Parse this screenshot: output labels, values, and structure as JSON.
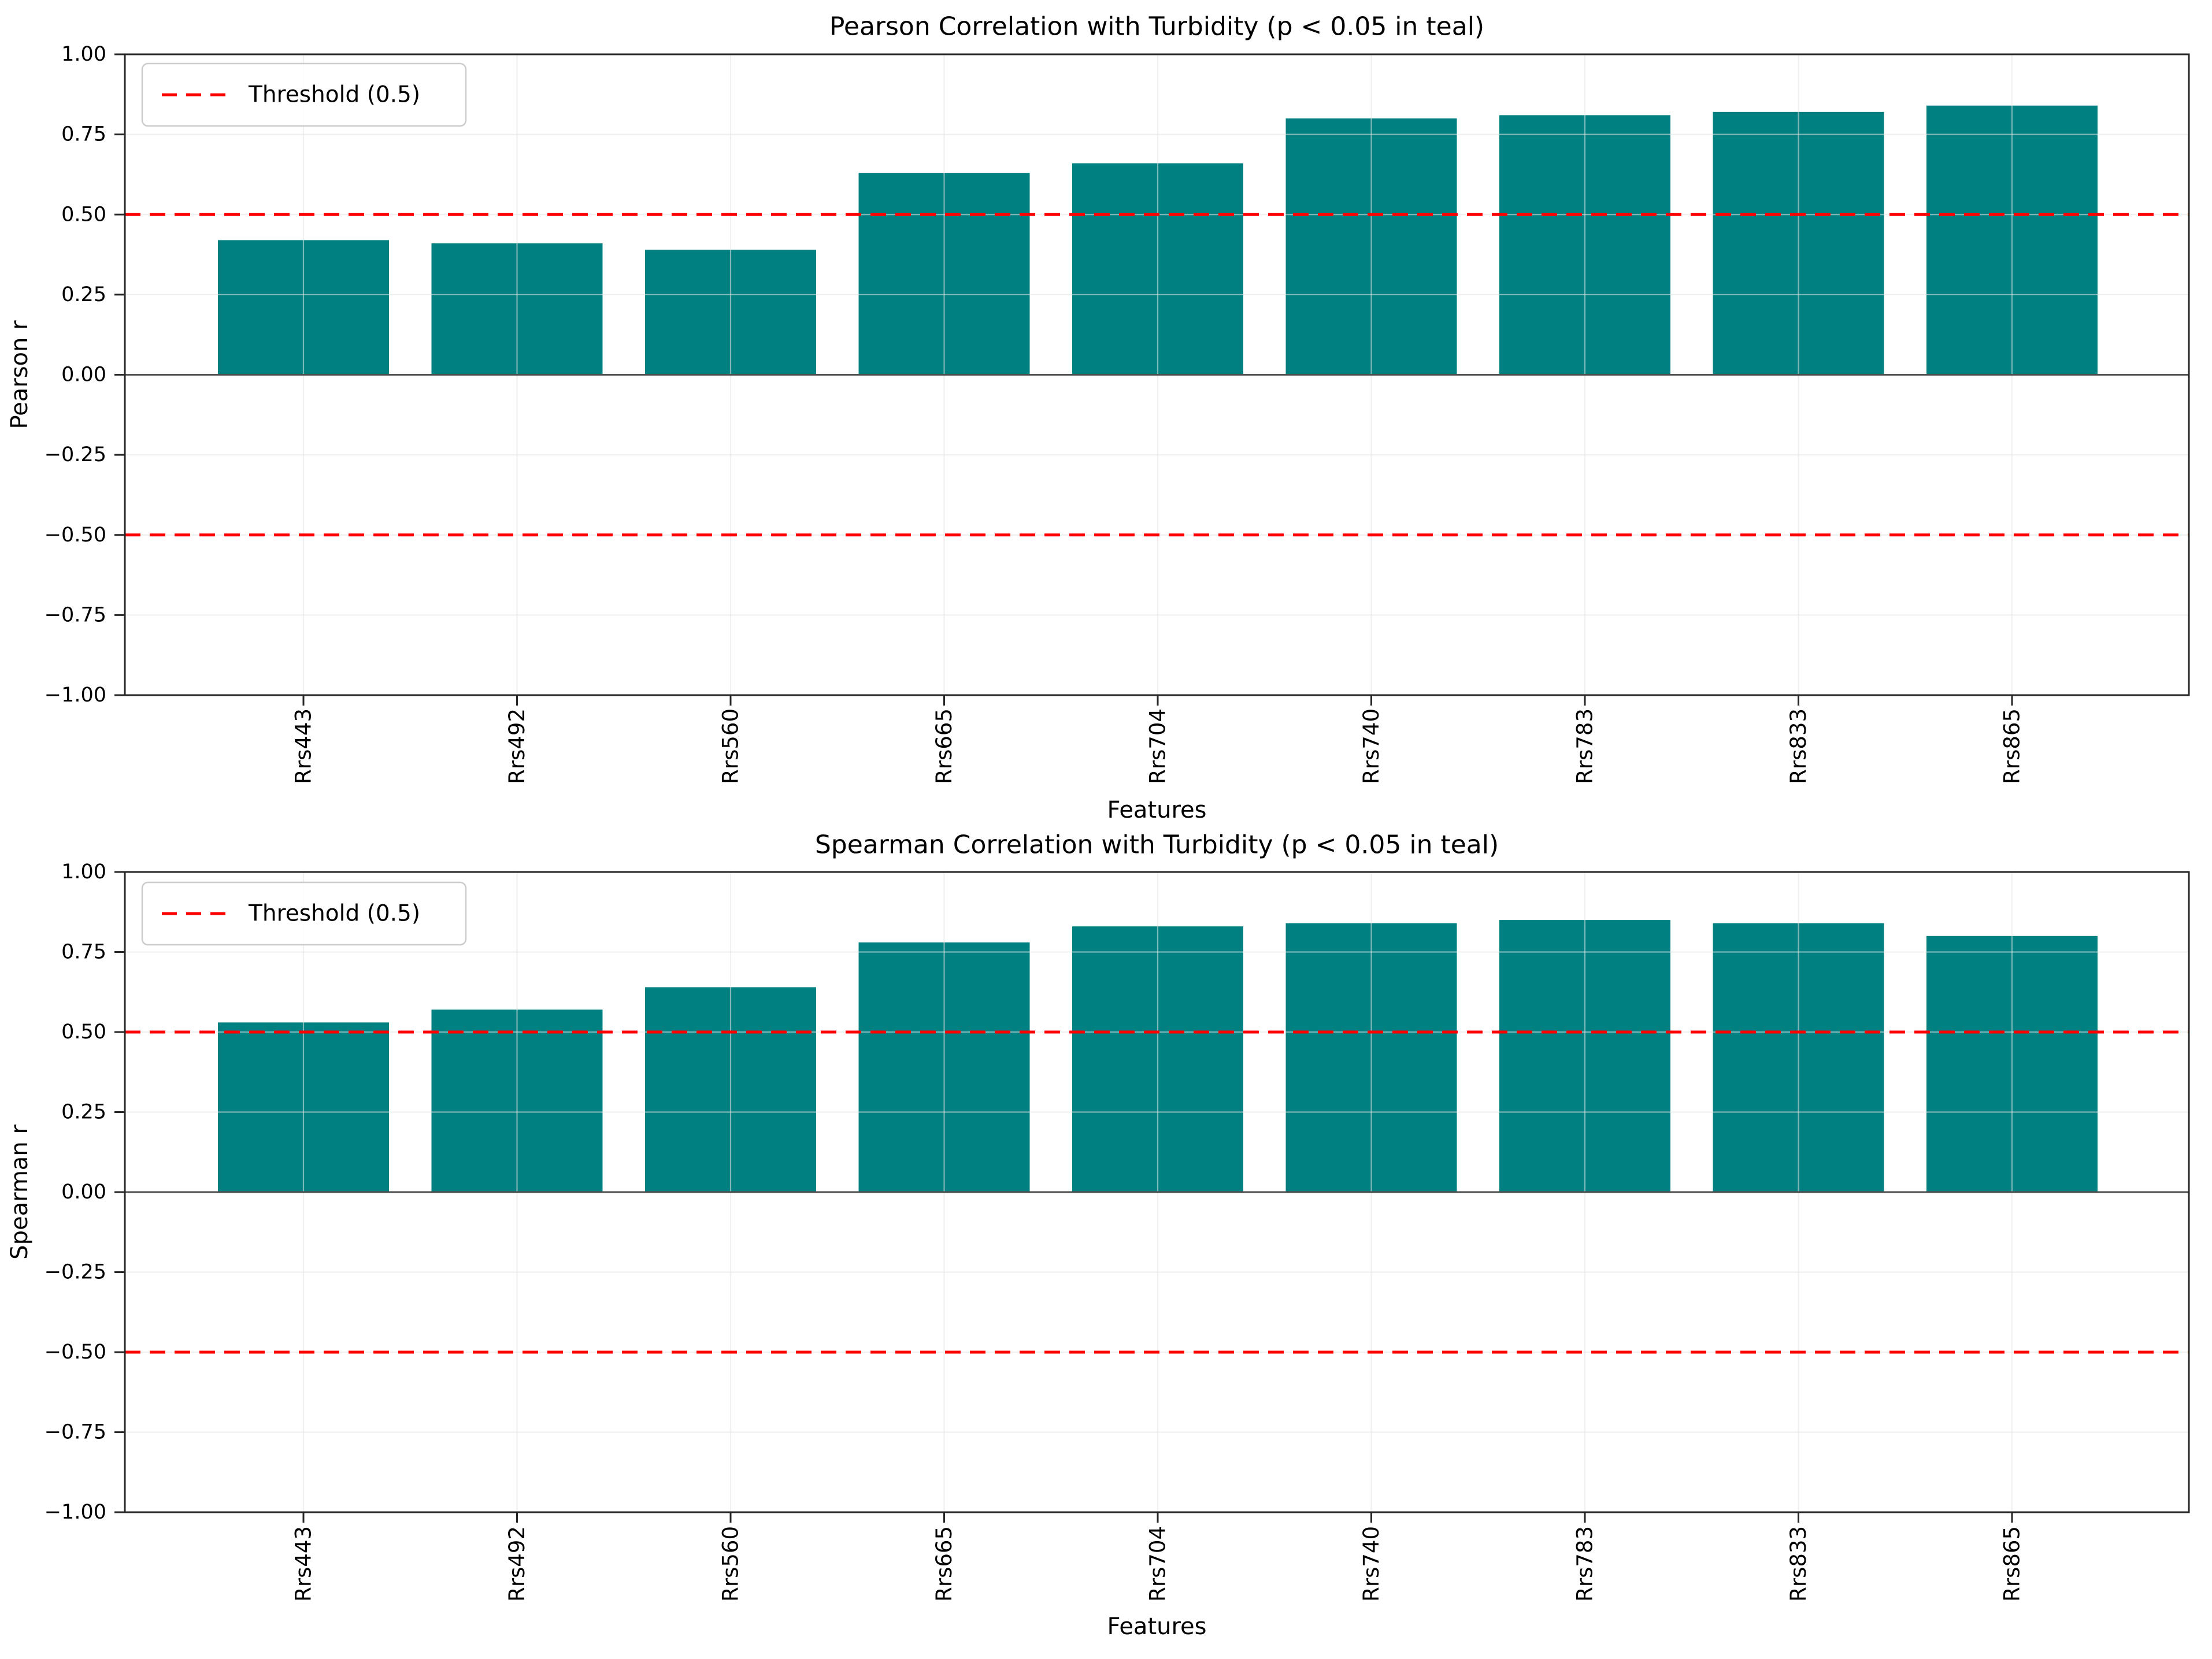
{
  "figure": {
    "background": "#ffffff"
  },
  "chart_data": [
    {
      "type": "bar",
      "title": "Pearson Correlation with Turbidity (p < 0.05 in teal)",
      "xlabel": "Features",
      "ylabel": "Pearson r",
      "categories": [
        "Rrs443",
        "Rrs492",
        "Rrs560",
        "Rrs665",
        "Rrs704",
        "Rrs740",
        "Rrs783",
        "Rrs833",
        "Rrs865"
      ],
      "values": [
        0.42,
        0.41,
        0.39,
        0.63,
        0.66,
        0.8,
        0.81,
        0.82,
        0.84
      ],
      "bar_color": "#008080",
      "ylim": [
        -1.0,
        1.0
      ],
      "yticks": [
        1.0,
        0.75,
        0.5,
        0.25,
        0.0,
        -0.25,
        -0.5,
        -0.75,
        -1.0
      ],
      "ytick_labels": [
        "1.00",
        "0.75",
        "0.50",
        "0.25",
        "0.00",
        "−0.25",
        "−0.50",
        "−0.75",
        "−1.00"
      ],
      "threshold_lines": [
        0.5,
        -0.5
      ],
      "threshold_color": "#ff0000",
      "zero_line": 0.0,
      "grid": true,
      "legend": {
        "label": "Threshold (0.5)",
        "position": "upper-left"
      }
    },
    {
      "type": "bar",
      "title": "Spearman Correlation with Turbidity (p < 0.05 in teal)",
      "xlabel": "Features",
      "ylabel": "Spearman r",
      "categories": [
        "Rrs443",
        "Rrs492",
        "Rrs560",
        "Rrs665",
        "Rrs704",
        "Rrs740",
        "Rrs783",
        "Rrs833",
        "Rrs865"
      ],
      "values": [
        0.53,
        0.57,
        0.64,
        0.78,
        0.83,
        0.84,
        0.85,
        0.84,
        0.8
      ],
      "bar_color": "#008080",
      "ylim": [
        -1.0,
        1.0
      ],
      "yticks": [
        1.0,
        0.75,
        0.5,
        0.25,
        0.0,
        -0.25,
        -0.5,
        -0.75,
        -1.0
      ],
      "ytick_labels": [
        "1.00",
        "0.75",
        "0.50",
        "0.25",
        "0.00",
        "−0.25",
        "−0.50",
        "−0.75",
        "−1.00"
      ],
      "threshold_lines": [
        0.5,
        -0.5
      ],
      "threshold_color": "#ff0000",
      "zero_line": 0.0,
      "grid": true,
      "legend": {
        "label": "Threshold (0.5)",
        "position": "upper-left"
      }
    }
  ],
  "style_colors": {
    "grid": "#e4e4e4",
    "zero_line": "#4d4d4d",
    "spine": "#262626",
    "legend_border": "#cccccc",
    "legend_background": "#ffffff"
  }
}
